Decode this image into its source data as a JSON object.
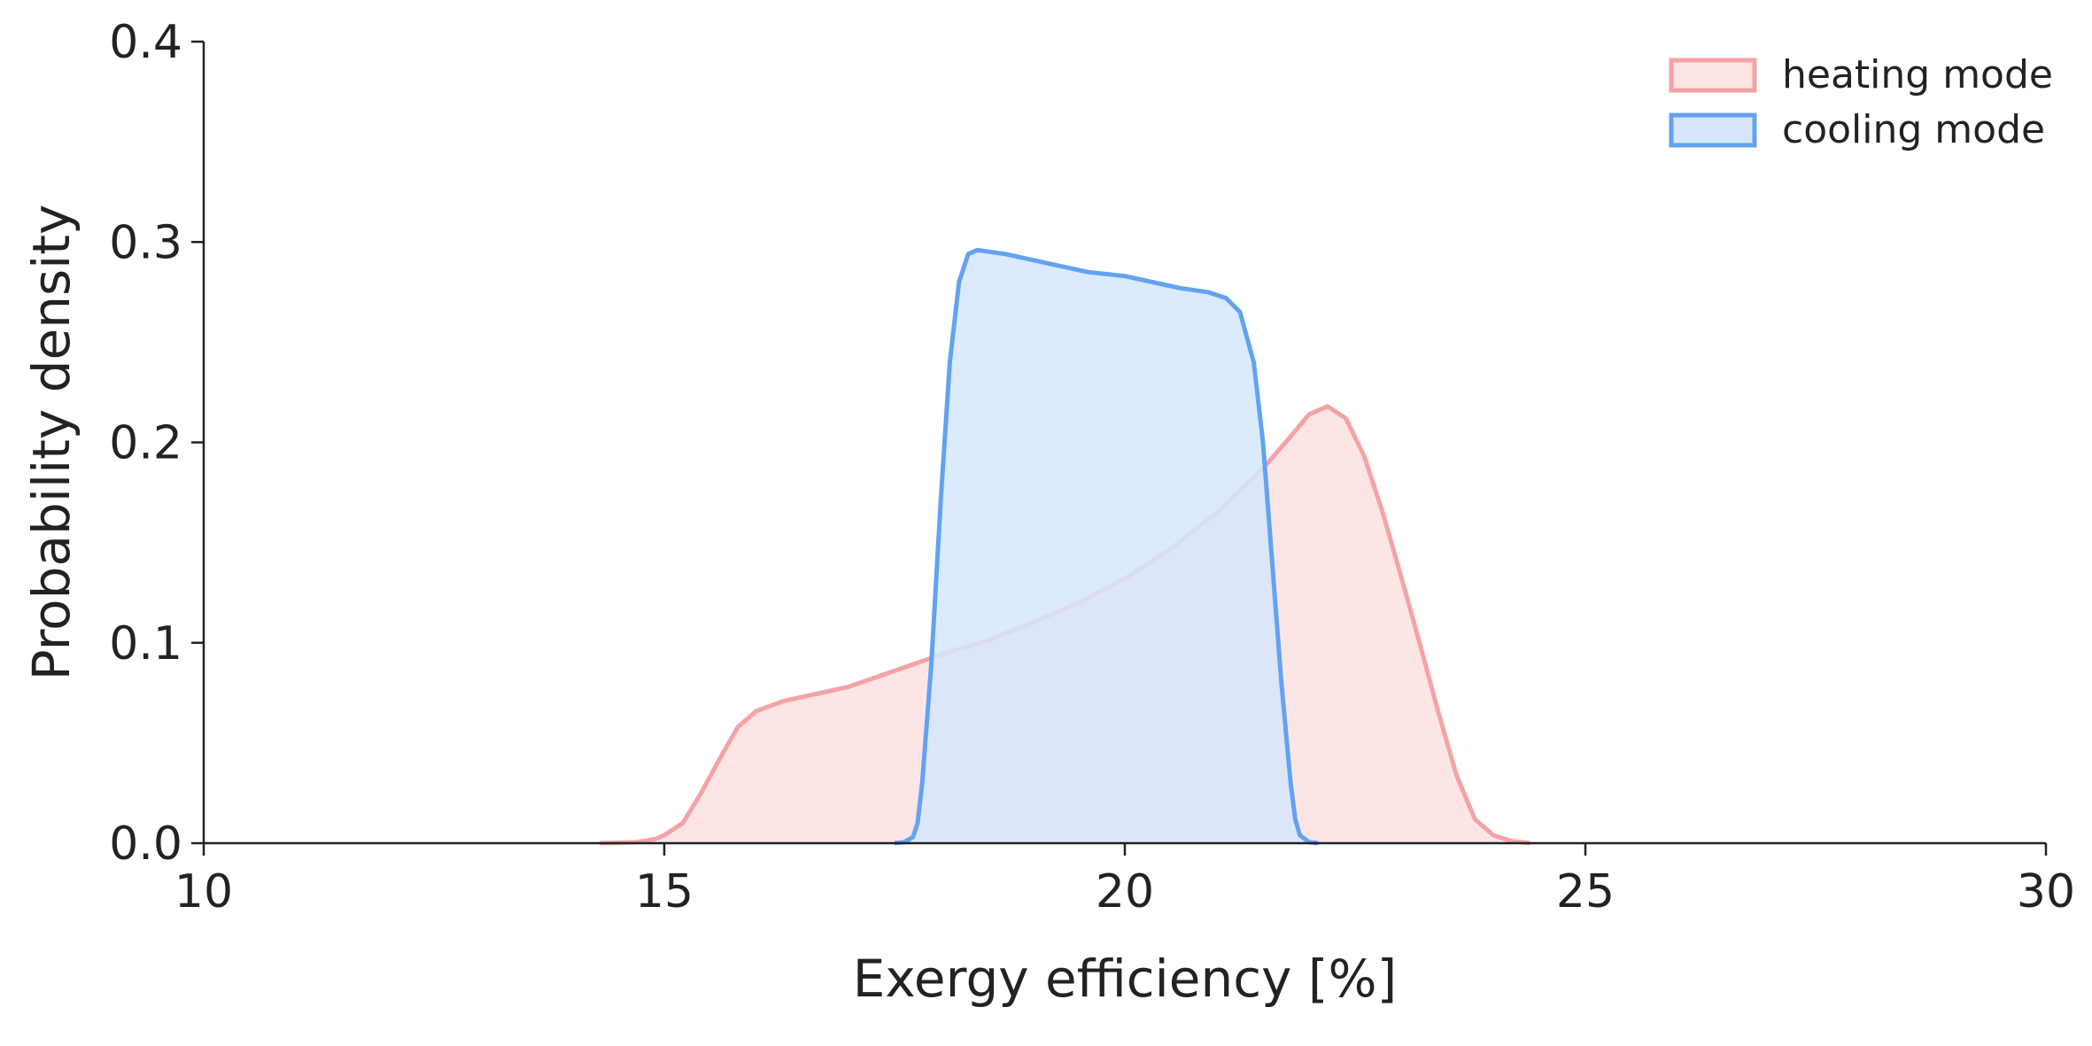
{
  "chart_data": {
    "type": "area",
    "title": "",
    "xlabel": "Exergy efficiency [%]",
    "ylabel": "Probability density",
    "xlim": [
      10,
      30
    ],
    "ylim": [
      0,
      0.4
    ],
    "xticks": [
      10,
      15,
      20,
      25,
      30
    ],
    "yticks": [
      0.0,
      0.1,
      0.2,
      0.3,
      0.4
    ],
    "xtick_labels": [
      "10",
      "15",
      "20",
      "25",
      "30"
    ],
    "ytick_labels": [
      "0.0",
      "0.1",
      "0.2",
      "0.3",
      "0.4"
    ],
    "grid": false,
    "legend_position": "top-right",
    "series": [
      {
        "name": "heating mode",
        "color": "#f4a3a5",
        "fill": "#fde5e6",
        "points": [
          [
            14.3,
            0.0
          ],
          [
            14.7,
            0.0005
          ],
          [
            14.9,
            0.002
          ],
          [
            15.0,
            0.004
          ],
          [
            15.2,
            0.01
          ],
          [
            15.4,
            0.025
          ],
          [
            15.6,
            0.042
          ],
          [
            15.8,
            0.058
          ],
          [
            16.0,
            0.066
          ],
          [
            16.3,
            0.071
          ],
          [
            16.7,
            0.075
          ],
          [
            17.0,
            0.078
          ],
          [
            17.5,
            0.086
          ],
          [
            18.0,
            0.094
          ],
          [
            18.5,
            0.101
          ],
          [
            19.0,
            0.11
          ],
          [
            19.5,
            0.12
          ],
          [
            20.0,
            0.132
          ],
          [
            20.5,
            0.147
          ],
          [
            21.0,
            0.165
          ],
          [
            21.5,
            0.187
          ],
          [
            21.8,
            0.203
          ],
          [
            22.0,
            0.214
          ],
          [
            22.2,
            0.218
          ],
          [
            22.4,
            0.212
          ],
          [
            22.6,
            0.193
          ],
          [
            22.8,
            0.165
          ],
          [
            23.0,
            0.133
          ],
          [
            23.2,
            0.1
          ],
          [
            23.4,
            0.066
          ],
          [
            23.6,
            0.034
          ],
          [
            23.8,
            0.012
          ],
          [
            24.0,
            0.004
          ],
          [
            24.2,
            0.001
          ],
          [
            24.4,
            0.0
          ]
        ]
      },
      {
        "name": "cooling mode",
        "color": "#62a3f0",
        "fill": "#d5e6fb",
        "points": [
          [
            17.5,
            0.0
          ],
          [
            17.6,
            0.0005
          ],
          [
            17.7,
            0.003
          ],
          [
            17.75,
            0.01
          ],
          [
            17.8,
            0.03
          ],
          [
            17.9,
            0.09
          ],
          [
            18.0,
            0.17
          ],
          [
            18.1,
            0.24
          ],
          [
            18.2,
            0.28
          ],
          [
            18.3,
            0.294
          ],
          [
            18.4,
            0.296
          ],
          [
            18.7,
            0.294
          ],
          [
            19.0,
            0.291
          ],
          [
            19.3,
            0.288
          ],
          [
            19.6,
            0.285
          ],
          [
            20.0,
            0.283
          ],
          [
            20.3,
            0.28
          ],
          [
            20.6,
            0.277
          ],
          [
            20.9,
            0.275
          ],
          [
            21.1,
            0.272
          ],
          [
            21.25,
            0.265
          ],
          [
            21.4,
            0.24
          ],
          [
            21.5,
            0.2
          ],
          [
            21.6,
            0.14
          ],
          [
            21.7,
            0.08
          ],
          [
            21.8,
            0.03
          ],
          [
            21.85,
            0.012
          ],
          [
            21.9,
            0.004
          ],
          [
            22.0,
            0.0005
          ],
          [
            22.1,
            0.0
          ]
        ]
      }
    ]
  }
}
